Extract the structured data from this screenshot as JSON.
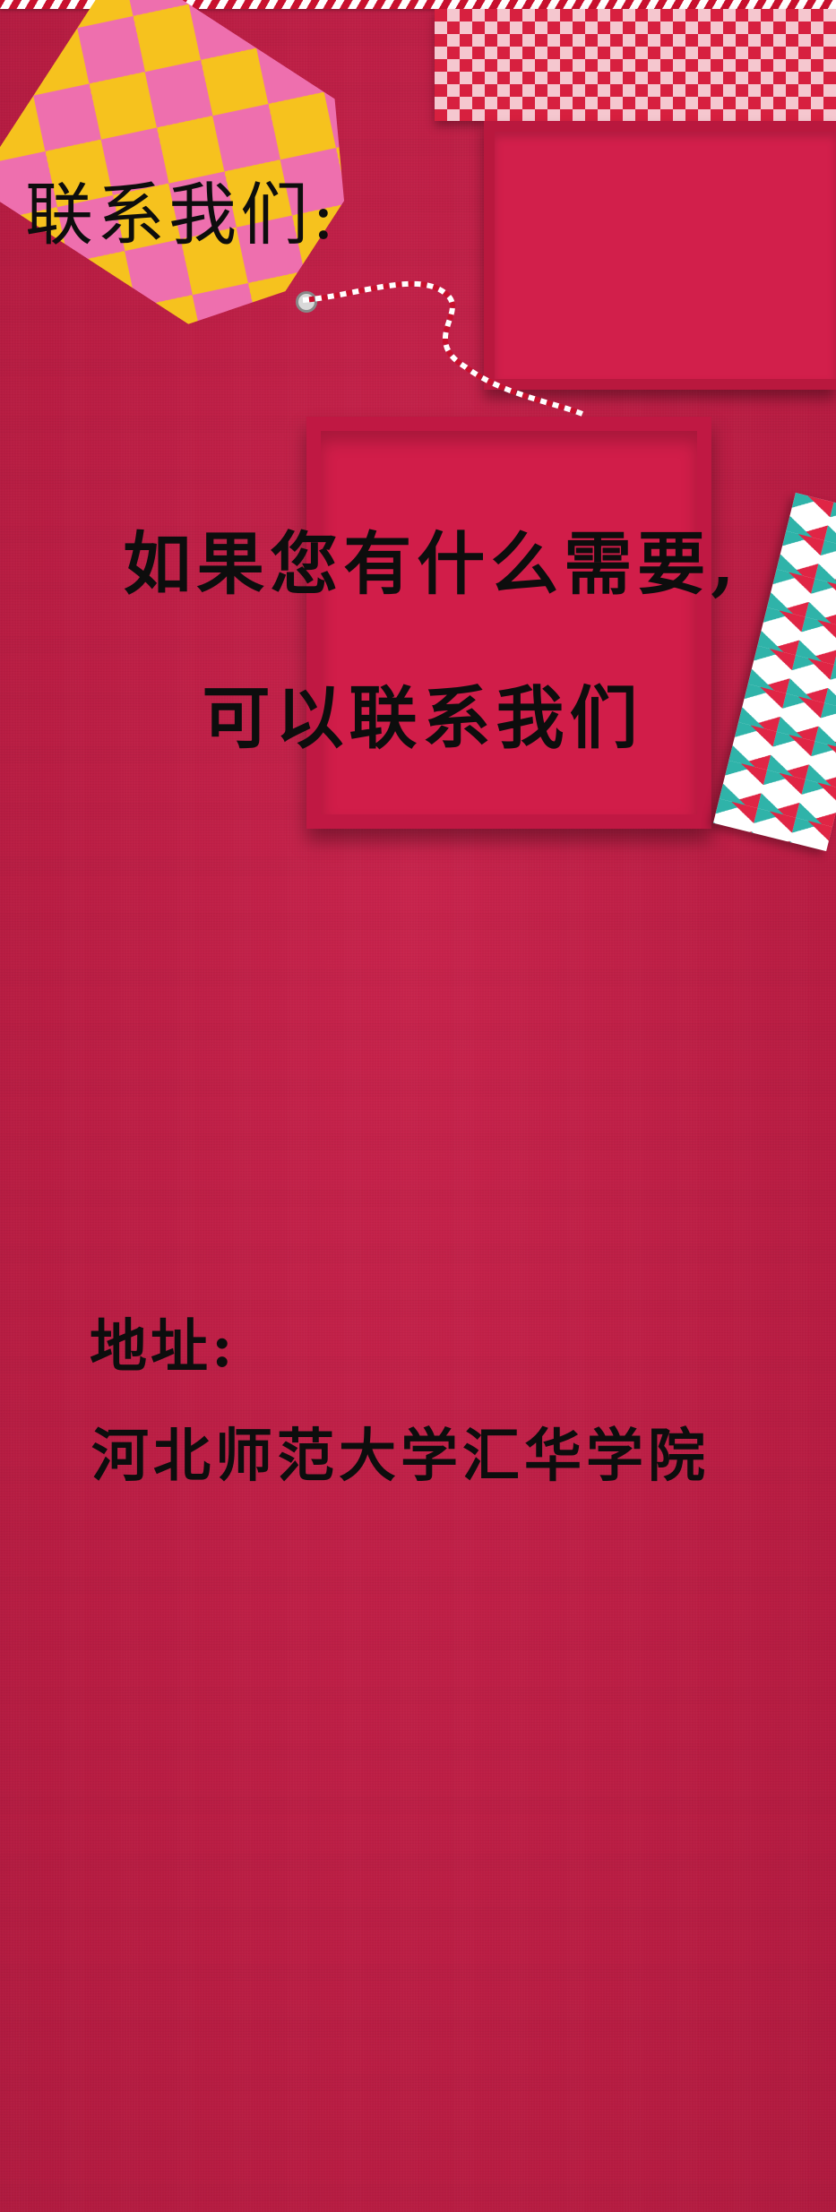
{
  "contact": {
    "heading": "联系我们:",
    "message_line1": "如果您有什么需要,",
    "message_line2": "可以联系我们"
  },
  "address": {
    "label": "地址:",
    "value": "河北师范大学汇华学院"
  },
  "colors": {
    "background": "#c02046",
    "text": "#0d0d0d",
    "tag_yellow": "#f6c21e",
    "tag_pink": "#ee6fae",
    "box_red": "#d11d49",
    "accent_teal": "#2fb3a9"
  }
}
